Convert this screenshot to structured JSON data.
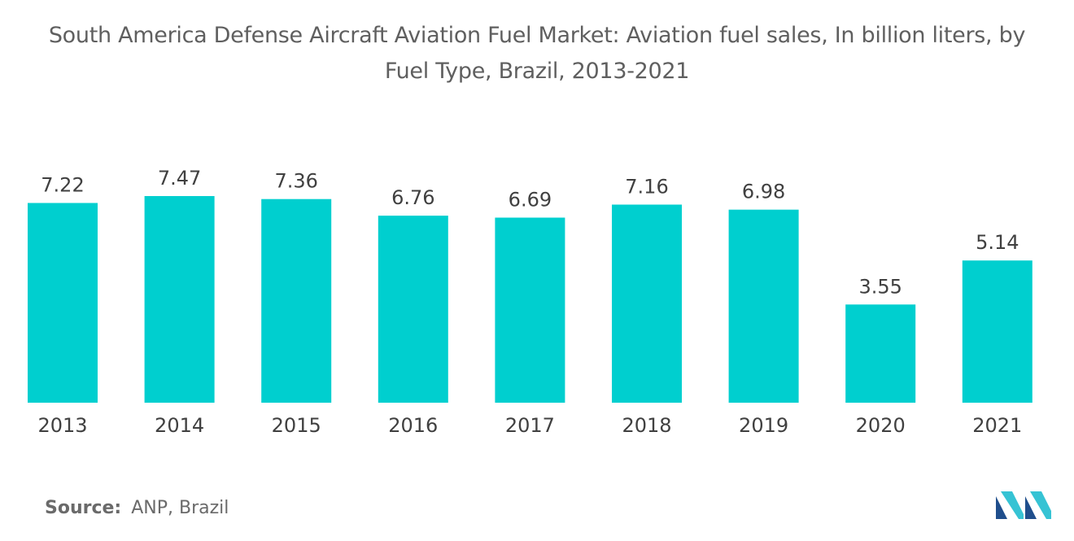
{
  "title_lines": [
    "South America Defense Aircraft Aviation Fuel Market: Aviation fuel sales, In billion liters, by",
    "Fuel Type, Brazil, 2013-2021"
  ],
  "source": {
    "label": "Source:",
    "value": "ANP, Brazil"
  },
  "brand_logo": "mordor-intelligence-logo",
  "colors": {
    "bar": "#00cfcf",
    "logo_dark": "#1f4e8c",
    "logo_light": "#36c3d4"
  },
  "chart_data": {
    "type": "bar",
    "title": "South America Defense Aircraft Aviation Fuel Market: Aviation fuel sales, In billion liters, by Fuel Type, Brazil, 2013-2021",
    "categories": [
      "2013",
      "2014",
      "2015",
      "2016",
      "2017",
      "2018",
      "2019",
      "2020",
      "2021"
    ],
    "values": [
      7.22,
      7.47,
      7.36,
      6.76,
      6.69,
      7.16,
      6.98,
      3.55,
      5.14
    ],
    "data_labels": [
      "7.22",
      "7.47",
      "7.36",
      "6.76",
      "6.69",
      "7.16",
      "6.98",
      "3.55",
      "5.14"
    ],
    "xlabel": "",
    "ylabel": "",
    "ylim": [
      0,
      7.47
    ],
    "grid": false,
    "legend": "none",
    "y_axis_visible": false
  }
}
